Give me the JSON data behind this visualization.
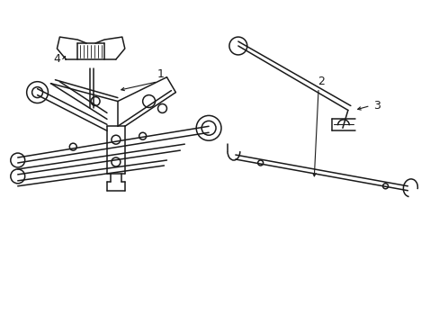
{
  "bg_color": "#ffffff",
  "line_color": "#1a1a1a",
  "lw": 1.1,
  "fig_width": 4.89,
  "fig_height": 3.6,
  "dpi": 100
}
